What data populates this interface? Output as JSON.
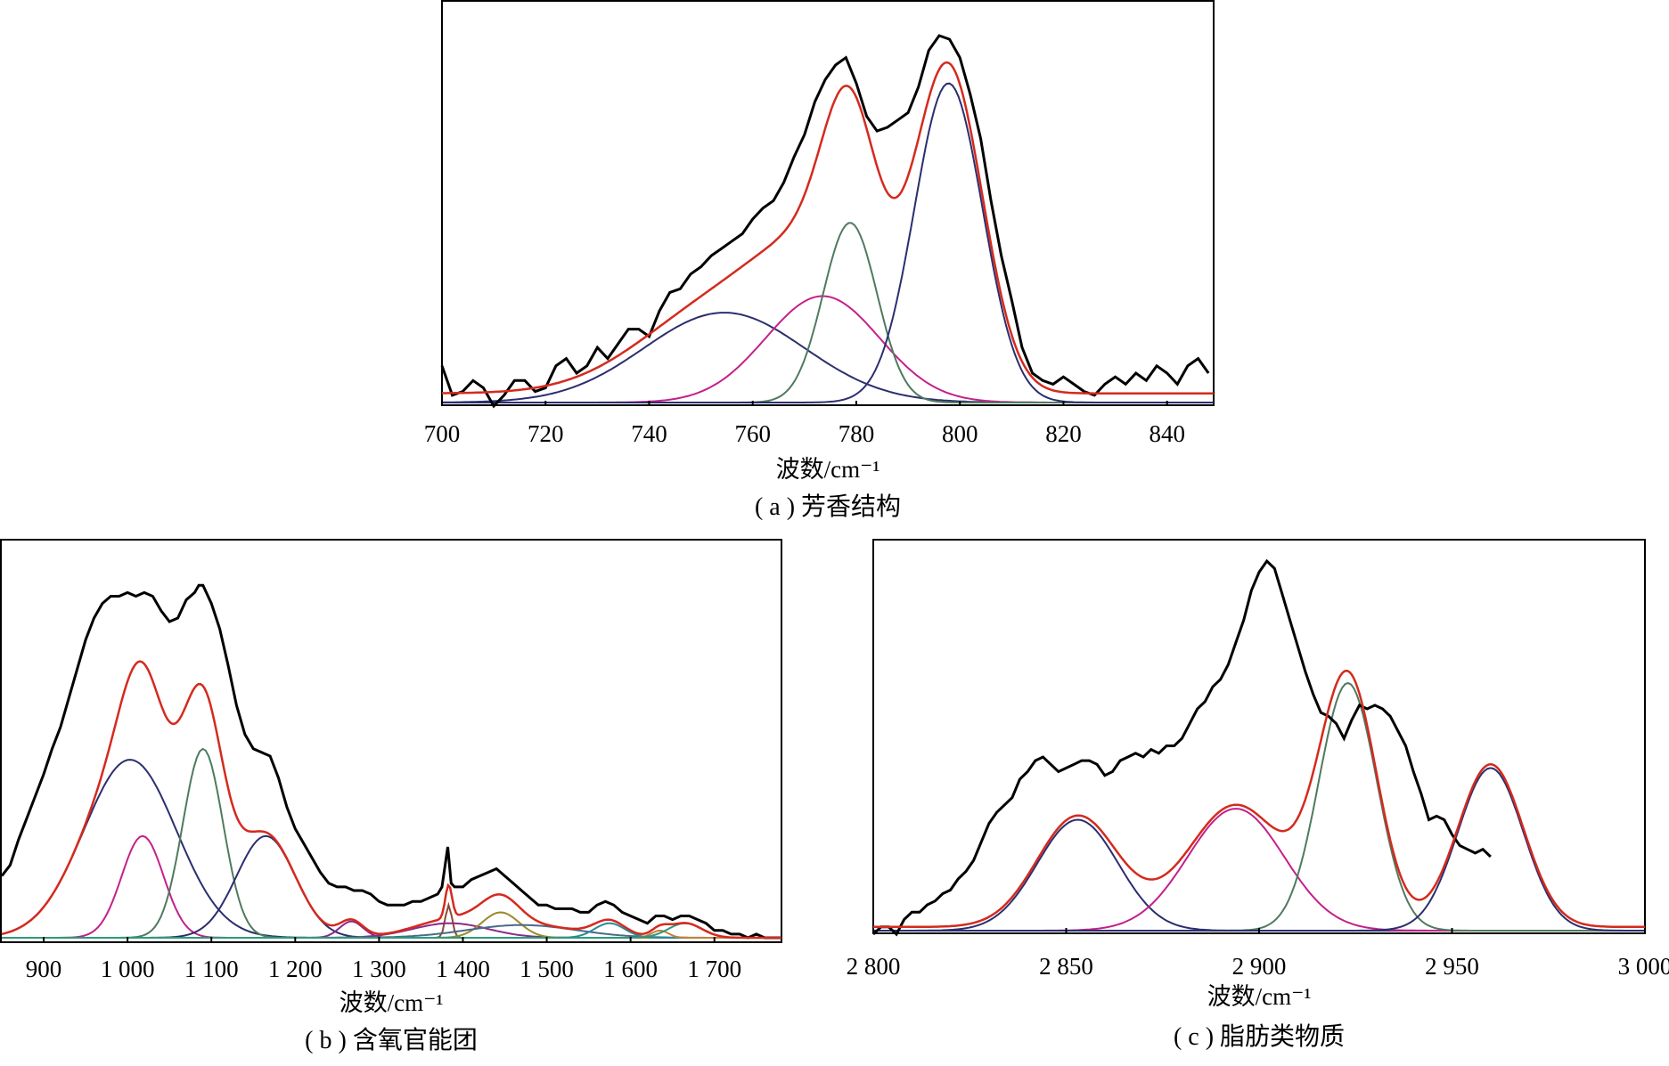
{
  "colors": {
    "measured": "#000000",
    "fit": "#d42a1e",
    "navy": "#2b2e6e",
    "magenta": "#c4208a",
    "green": "#4f7a5f",
    "purple": "#8a2a8a",
    "brown": "#8a4a36",
    "olive": "#9a8a2a",
    "teal": "#2a8a9a",
    "steel": "#4a6a8a",
    "orange": "#c4803a",
    "seagreen": "#2a9a7a"
  },
  "chart_data": [
    {
      "id": "a",
      "type": "line",
      "caption": "( a ) 芳香结构",
      "xlabel": "波数/cm⁻¹",
      "xlim": [
        700,
        849
      ],
      "ylim": [
        0,
        1.0
      ],
      "xticks": [
        700,
        720,
        740,
        760,
        780,
        800,
        820,
        840
      ],
      "xtick_labels": [
        "700",
        "720",
        "740",
        "760",
        "780",
        "800",
        "820",
        "840"
      ],
      "measured": [
        [
          700,
          0.1
        ],
        [
          702,
          0.02
        ],
        [
          704,
          0.03
        ],
        [
          706,
          0.06
        ],
        [
          708,
          0.04
        ],
        [
          710,
          -0.01
        ],
        [
          712,
          0.02
        ],
        [
          714,
          0.06
        ],
        [
          716,
          0.06
        ],
        [
          718,
          0.03
        ],
        [
          720,
          0.04
        ],
        [
          722,
          0.1
        ],
        [
          724,
          0.12
        ],
        [
          726,
          0.08
        ],
        [
          728,
          0.1
        ],
        [
          730,
          0.15
        ],
        [
          732,
          0.12
        ],
        [
          734,
          0.16
        ],
        [
          736,
          0.2
        ],
        [
          738,
          0.2
        ],
        [
          740,
          0.18
        ],
        [
          742,
          0.25
        ],
        [
          744,
          0.3
        ],
        [
          746,
          0.31
        ],
        [
          748,
          0.35
        ],
        [
          750,
          0.37
        ],
        [
          752,
          0.4
        ],
        [
          754,
          0.42
        ],
        [
          756,
          0.44
        ],
        [
          758,
          0.46
        ],
        [
          760,
          0.5
        ],
        [
          762,
          0.53
        ],
        [
          764,
          0.55
        ],
        [
          766,
          0.6
        ],
        [
          768,
          0.67
        ],
        [
          770,
          0.73
        ],
        [
          772,
          0.82
        ],
        [
          774,
          0.88
        ],
        [
          776,
          0.92
        ],
        [
          778,
          0.94
        ],
        [
          780,
          0.87
        ],
        [
          782,
          0.78
        ],
        [
          784,
          0.74
        ],
        [
          786,
          0.75
        ],
        [
          788,
          0.77
        ],
        [
          790,
          0.79
        ],
        [
          792,
          0.86
        ],
        [
          794,
          0.96
        ],
        [
          796,
          1.0
        ],
        [
          798,
          0.99
        ],
        [
          800,
          0.94
        ],
        [
          802,
          0.84
        ],
        [
          804,
          0.72
        ],
        [
          806,
          0.55
        ],
        [
          808,
          0.4
        ],
        [
          810,
          0.28
        ],
        [
          812,
          0.15
        ],
        [
          814,
          0.08
        ],
        [
          816,
          0.06
        ],
        [
          818,
          0.05
        ],
        [
          820,
          0.07
        ],
        [
          822,
          0.05
        ],
        [
          824,
          0.03
        ],
        [
          826,
          0.02
        ],
        [
          828,
          0.05
        ],
        [
          830,
          0.07
        ],
        [
          832,
          0.05
        ],
        [
          834,
          0.08
        ],
        [
          836,
          0.06
        ],
        [
          838,
          0.1
        ],
        [
          840,
          0.08
        ],
        [
          842,
          0.05
        ],
        [
          844,
          0.1
        ],
        [
          846,
          0.12
        ],
        [
          848,
          0.08
        ]
      ],
      "components": [
        {
          "center": 754.5,
          "height": 0.245,
          "width": 15.5,
          "color": "navy"
        },
        {
          "center": 773.5,
          "height": 0.29,
          "width": 11.0,
          "color": "magenta"
        },
        {
          "center": 778.8,
          "height": 0.49,
          "width": 5.2,
          "color": "green"
        },
        {
          "center": 797.8,
          "height": 0.87,
          "width": 6.6,
          "color": "navy"
        }
      ],
      "baseline": 0.0,
      "fit_tail_offset": 0.025
    },
    {
      "id": "b",
      "type": "line",
      "caption": "( b ) 含氧官能团",
      "xlabel": "波数/cm⁻¹",
      "xlim": [
        850,
        1780
      ],
      "ylim": [
        0,
        1.0
      ],
      "xticks": [
        900,
        1000,
        1100,
        1200,
        1300,
        1400,
        1500,
        1600,
        1700
      ],
      "xtick_labels": [
        "900",
        "1 000",
        "1 100",
        "1 200",
        "1 300",
        "1 400",
        "1 500",
        "1 600",
        "1 700"
      ],
      "measured": [
        [
          850,
          0.17
        ],
        [
          860,
          0.2
        ],
        [
          870,
          0.27
        ],
        [
          880,
          0.33
        ],
        [
          890,
          0.39
        ],
        [
          900,
          0.45
        ],
        [
          910,
          0.52
        ],
        [
          920,
          0.58
        ],
        [
          930,
          0.66
        ],
        [
          940,
          0.74
        ],
        [
          950,
          0.82
        ],
        [
          960,
          0.88
        ],
        [
          970,
          0.92
        ],
        [
          980,
          0.94
        ],
        [
          990,
          0.94
        ],
        [
          1000,
          0.95
        ],
        [
          1010,
          0.94
        ],
        [
          1020,
          0.95
        ],
        [
          1030,
          0.94
        ],
        [
          1040,
          0.9
        ],
        [
          1050,
          0.87
        ],
        [
          1060,
          0.88
        ],
        [
          1070,
          0.93
        ],
        [
          1080,
          0.95
        ],
        [
          1085,
          0.97
        ],
        [
          1090,
          0.97
        ],
        [
          1100,
          0.92
        ],
        [
          1110,
          0.85
        ],
        [
          1120,
          0.75
        ],
        [
          1130,
          0.64
        ],
        [
          1140,
          0.56
        ],
        [
          1150,
          0.52
        ],
        [
          1160,
          0.51
        ],
        [
          1170,
          0.5
        ],
        [
          1180,
          0.44
        ],
        [
          1190,
          0.36
        ],
        [
          1200,
          0.3
        ],
        [
          1210,
          0.26
        ],
        [
          1220,
          0.22
        ],
        [
          1230,
          0.18
        ],
        [
          1240,
          0.15
        ],
        [
          1250,
          0.14
        ],
        [
          1260,
          0.14
        ],
        [
          1270,
          0.13
        ],
        [
          1280,
          0.13
        ],
        [
          1290,
          0.12
        ],
        [
          1300,
          0.1
        ],
        [
          1310,
          0.09
        ],
        [
          1320,
          0.09
        ],
        [
          1330,
          0.09
        ],
        [
          1340,
          0.1
        ],
        [
          1350,
          0.1
        ],
        [
          1360,
          0.11
        ],
        [
          1370,
          0.12
        ],
        [
          1375,
          0.14
        ],
        [
          1382,
          0.25
        ],
        [
          1386,
          0.15
        ],
        [
          1390,
          0.14
        ],
        [
          1400,
          0.14
        ],
        [
          1410,
          0.16
        ],
        [
          1420,
          0.17
        ],
        [
          1430,
          0.18
        ],
        [
          1440,
          0.19
        ],
        [
          1450,
          0.17
        ],
        [
          1460,
          0.15
        ],
        [
          1470,
          0.13
        ],
        [
          1480,
          0.11
        ],
        [
          1490,
          0.09
        ],
        [
          1500,
          0.09
        ],
        [
          1510,
          0.08
        ],
        [
          1520,
          0.08
        ],
        [
          1530,
          0.08
        ],
        [
          1540,
          0.07
        ],
        [
          1550,
          0.07
        ],
        [
          1560,
          0.09
        ],
        [
          1570,
          0.1
        ],
        [
          1580,
          0.09
        ],
        [
          1590,
          0.07
        ],
        [
          1600,
          0.06
        ],
        [
          1610,
          0.05
        ],
        [
          1620,
          0.04
        ],
        [
          1630,
          0.06
        ],
        [
          1640,
          0.06
        ],
        [
          1650,
          0.05
        ],
        [
          1660,
          0.06
        ],
        [
          1670,
          0.06
        ],
        [
          1680,
          0.05
        ],
        [
          1690,
          0.04
        ],
        [
          1700,
          0.02
        ],
        [
          1710,
          0.02
        ],
        [
          1720,
          0.01
        ],
        [
          1730,
          0.01
        ],
        [
          1740,
          0.0
        ],
        [
          1750,
          0.01
        ],
        [
          1760,
          0.0
        ],
        [
          1770,
          0.0
        ],
        [
          1780,
          0.0
        ]
      ],
      "components": [
        {
          "center": 1003,
          "height": 0.49,
          "width": 55,
          "color": "navy"
        },
        {
          "center": 1018,
          "height": 0.28,
          "width": 25,
          "color": "magenta"
        },
        {
          "center": 1090,
          "height": 0.52,
          "width": 24,
          "color": "green"
        },
        {
          "center": 1165,
          "height": 0.28,
          "width": 35,
          "color": "navy"
        },
        {
          "center": 1267,
          "height": 0.045,
          "width": 14,
          "color": "purple"
        },
        {
          "center": 1383,
          "height": 0.09,
          "width": 4,
          "color": "brown"
        },
        {
          "center": 1385,
          "height": 0.04,
          "width": 45,
          "color": "purple"
        },
        {
          "center": 1445,
          "height": 0.07,
          "width": 22,
          "color": "olive"
        },
        {
          "center": 1470,
          "height": 0.035,
          "width": 65,
          "color": "steel"
        },
        {
          "center": 1575,
          "height": 0.04,
          "width": 18,
          "color": "teal"
        },
        {
          "center": 1635,
          "height": 0.02,
          "width": 10,
          "color": "orange"
        },
        {
          "center": 1665,
          "height": 0.04,
          "width": 20,
          "color": "seagreen"
        }
      ],
      "baseline": 0.0,
      "fit_tail_offset": 0.0
    },
    {
      "id": "c",
      "type": "line",
      "caption": "( c ) 脂肪类物质",
      "xlabel": "波数/cm⁻¹",
      "xlim": [
        2800,
        3000
      ],
      "ylim": [
        0,
        1.0
      ],
      "xticks": [
        2800,
        2850,
        2900,
        2950,
        3000
      ],
      "xtick_labels": [
        "2 800",
        "2 850",
        "2 900",
        "2 950",
        "3 000"
      ],
      "measured": [
        [
          2800,
          -0.01
        ],
        [
          2802,
          0.01
        ],
        [
          2804,
          0.01
        ],
        [
          2806,
          -0.02
        ],
        [
          2808,
          0.03
        ],
        [
          2810,
          0.05
        ],
        [
          2812,
          0.05
        ],
        [
          2814,
          0.07
        ],
        [
          2816,
          0.08
        ],
        [
          2818,
          0.1
        ],
        [
          2820,
          0.11
        ],
        [
          2822,
          0.14
        ],
        [
          2824,
          0.16
        ],
        [
          2826,
          0.19
        ],
        [
          2828,
          0.24
        ],
        [
          2830,
          0.29
        ],
        [
          2832,
          0.32
        ],
        [
          2834,
          0.34
        ],
        [
          2836,
          0.36
        ],
        [
          2838,
          0.41
        ],
        [
          2840,
          0.43
        ],
        [
          2842,
          0.46
        ],
        [
          2844,
          0.47
        ],
        [
          2846,
          0.45
        ],
        [
          2848,
          0.43
        ],
        [
          2850,
          0.44
        ],
        [
          2852,
          0.45
        ],
        [
          2854,
          0.46
        ],
        [
          2856,
          0.46
        ],
        [
          2858,
          0.45
        ],
        [
          2860,
          0.42
        ],
        [
          2862,
          0.43
        ],
        [
          2864,
          0.46
        ],
        [
          2866,
          0.47
        ],
        [
          2868,
          0.48
        ],
        [
          2870,
          0.47
        ],
        [
          2872,
          0.49
        ],
        [
          2874,
          0.48
        ],
        [
          2876,
          0.5
        ],
        [
          2878,
          0.5
        ],
        [
          2880,
          0.52
        ],
        [
          2882,
          0.56
        ],
        [
          2884,
          0.6
        ],
        [
          2886,
          0.62
        ],
        [
          2888,
          0.66
        ],
        [
          2890,
          0.68
        ],
        [
          2892,
          0.72
        ],
        [
          2894,
          0.78
        ],
        [
          2896,
          0.84
        ],
        [
          2898,
          0.92
        ],
        [
          2900,
          0.97
        ],
        [
          2902,
          1.0
        ],
        [
          2904,
          0.98
        ],
        [
          2906,
          0.91
        ],
        [
          2908,
          0.84
        ],
        [
          2910,
          0.77
        ],
        [
          2912,
          0.7
        ],
        [
          2914,
          0.64
        ],
        [
          2916,
          0.59
        ],
        [
          2918,
          0.58
        ],
        [
          2920,
          0.56
        ],
        [
          2922,
          0.52
        ],
        [
          2924,
          0.57
        ],
        [
          2926,
          0.61
        ],
        [
          2928,
          0.6
        ],
        [
          2930,
          0.61
        ],
        [
          2932,
          0.6
        ],
        [
          2934,
          0.58
        ],
        [
          2936,
          0.54
        ],
        [
          2938,
          0.5
        ],
        [
          2940,
          0.43
        ],
        [
          2942,
          0.37
        ],
        [
          2944,
          0.3
        ],
        [
          2946,
          0.31
        ],
        [
          2948,
          0.3
        ],
        [
          2950,
          0.26
        ],
        [
          2952,
          0.23
        ],
        [
          2954,
          0.22
        ],
        [
          2956,
          0.21
        ],
        [
          2958,
          0.22
        ],
        [
          2960,
          0.2
        ]
      ],
      "components": [
        {
          "center": 2853,
          "height": 0.3,
          "width": 10.5,
          "color": "navy"
        },
        {
          "center": 2894,
          "height": 0.33,
          "width": 12.5,
          "color": "magenta"
        },
        {
          "center": 2923,
          "height": 0.67,
          "width": 7.5,
          "color": "green"
        },
        {
          "center": 2960,
          "height": 0.44,
          "width": 8.5,
          "color": "navy"
        }
      ],
      "baseline": 0.0,
      "fit_tail_offset": 0.01
    }
  ]
}
